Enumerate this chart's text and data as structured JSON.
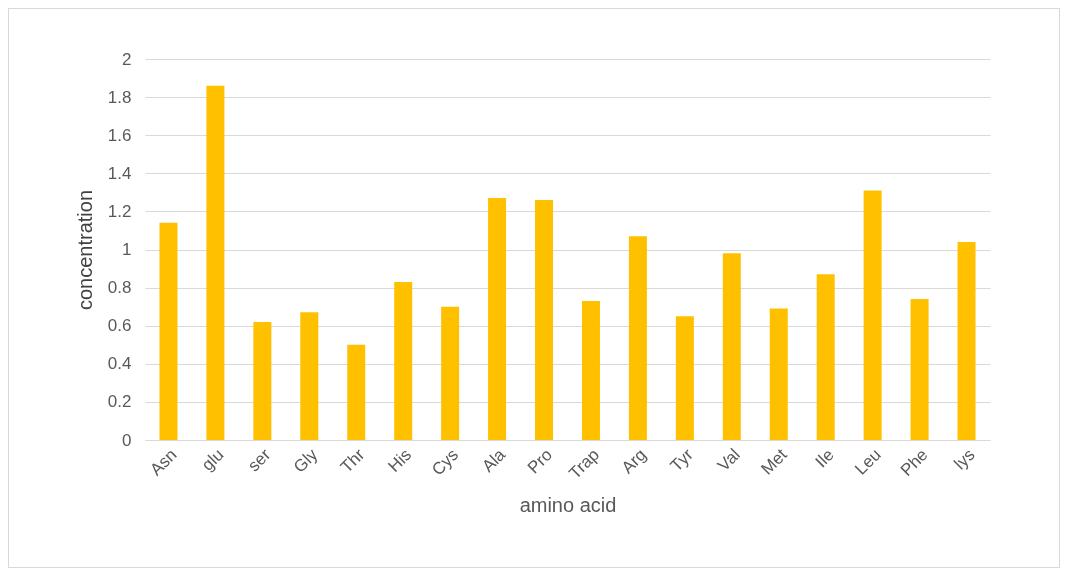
{
  "chart_data": {
    "type": "bar",
    "xlabel": "amino acid",
    "ylabel": "concentration",
    "categories": [
      "Asn",
      "glu",
      "ser",
      "Gly",
      "Thr",
      "His",
      "Cys",
      "Ala",
      "Pro",
      "Trap",
      "Arg",
      "Tyr",
      "Val",
      "Met",
      "Ile",
      "Leu",
      "Phe",
      "lys"
    ],
    "values": [
      1.14,
      1.86,
      0.62,
      0.67,
      0.5,
      0.83,
      0.7,
      1.27,
      1.26,
      0.73,
      1.07,
      0.65,
      0.98,
      0.69,
      0.87,
      1.31,
      0.74,
      1.04
    ],
    "color": "#ffc000",
    "ylim": [
      0,
      2
    ],
    "yticks": [
      0,
      0.2,
      0.4,
      0.6,
      0.8,
      1,
      1.2,
      1.4,
      1.6,
      1.8,
      2
    ],
    "grid": true
  }
}
